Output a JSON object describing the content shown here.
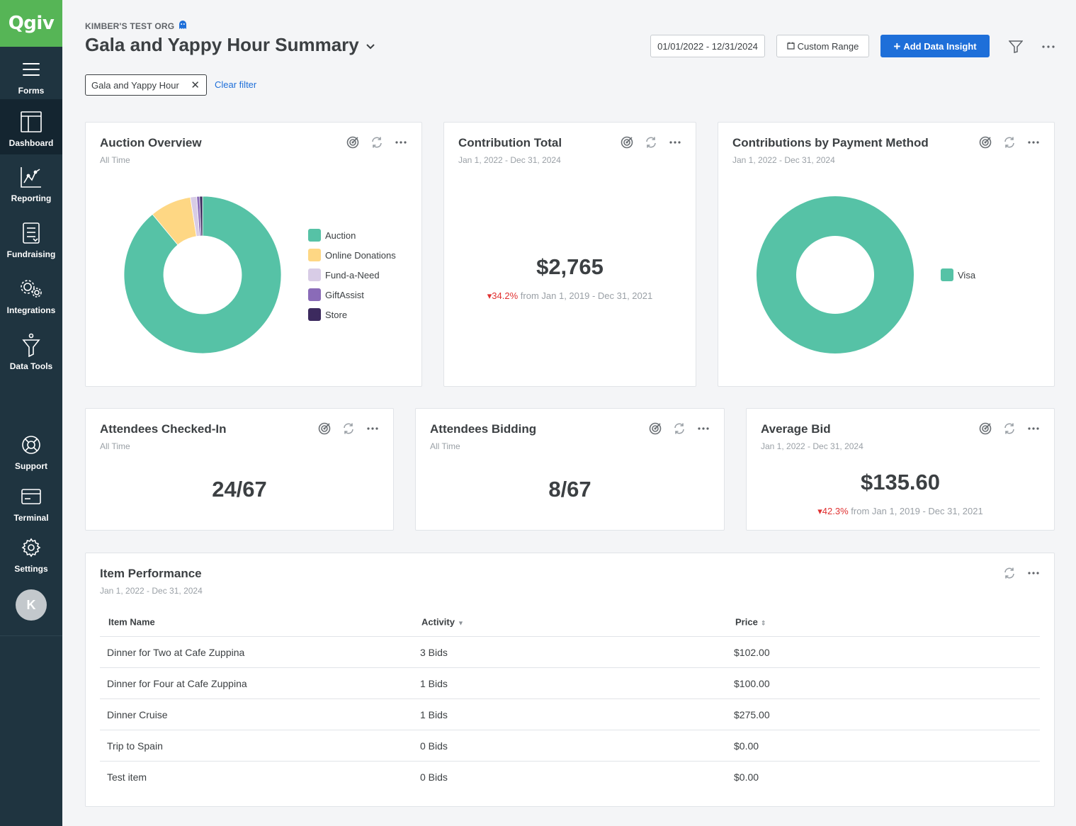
{
  "app": {
    "logo": "Qgiv"
  },
  "sidebar": {
    "items": [
      {
        "label": "Forms",
        "icon": "hamburger-icon"
      },
      {
        "label": "Dashboard",
        "icon": "dashboard-icon"
      },
      {
        "label": "Reporting",
        "icon": "chart-line-icon"
      },
      {
        "label": "Fundraising",
        "icon": "document-list-icon"
      },
      {
        "label": "Integrations",
        "icon": "gears-icon"
      },
      {
        "label": "Data Tools",
        "icon": "funnel-icon"
      },
      {
        "label": "Support",
        "icon": "lifebuoy-icon"
      },
      {
        "label": "Terminal",
        "icon": "card-terminal-icon"
      },
      {
        "label": "Settings",
        "icon": "gear-icon"
      }
    ],
    "active": "Dashboard",
    "avatar_initial": "K"
  },
  "header": {
    "org": "KIMBER'S TEST ORG",
    "title": "Gala and Yappy Hour Summary",
    "date_range": "01/01/2022 - 12/31/2024",
    "custom_range": "Custom Range",
    "add_insight": "Add Data Insight"
  },
  "filters": {
    "chip": "Gala and Yappy Hour",
    "clear": "Clear filter"
  },
  "colors": {
    "teal": "#56c2a6",
    "yellow": "#fed784",
    "lavender": "#d8cce6",
    "purple": "#8a6bb8",
    "dark_purple": "#3c2a5e",
    "primary": "#1e6fd9",
    "negative": "#e03131"
  },
  "cards": {
    "auction": {
      "title": "Auction Overview",
      "subtitle": "All Time"
    },
    "contribution": {
      "title": "Contribution Total",
      "subtitle": "Jan 1, 2022 - Dec 31, 2024",
      "value": "$2,765",
      "delta": "34.2%",
      "delta_text": "from Jan 1, 2019 - Dec 31, 2021"
    },
    "payment": {
      "title": "Contributions by Payment Method",
      "subtitle": "Jan 1, 2022 - Dec 31, 2024"
    },
    "checked_in": {
      "title": "Attendees Checked-In",
      "subtitle": "All Time",
      "value": "24/67"
    },
    "bidding": {
      "title": "Attendees Bidding",
      "subtitle": "All Time",
      "value": "8/67"
    },
    "avg_bid": {
      "title": "Average Bid",
      "subtitle": "Jan 1, 2022 - Dec 31, 2024",
      "value": "$135.60",
      "delta": "42.3%",
      "delta_text": "from Jan 1, 2019 - Dec 31, 2021"
    },
    "items": {
      "title": "Item Performance",
      "subtitle": "Jan 1, 2022 - Dec 31, 2024",
      "columns": [
        "Item Name",
        "Activity",
        "Price"
      ],
      "rows": [
        [
          "Dinner for Two at Cafe Zuppina",
          "3 Bids",
          "$102.00"
        ],
        [
          "Dinner for Four at Cafe Zuppina",
          "1 Bids",
          "$100.00"
        ],
        [
          "Dinner Cruise",
          "1 Bids",
          "$275.00"
        ],
        [
          "Trip to Spain",
          "0 Bids",
          "$0.00"
        ],
        [
          "Test item",
          "0 Bids",
          "$0.00"
        ]
      ]
    }
  },
  "chart_data": [
    {
      "type": "pie",
      "title": "Auction Overview",
      "categories": [
        "Auction",
        "Online Donations",
        "Fund-a-Need",
        "GiftAssist",
        "Store"
      ],
      "values": [
        89.0,
        8.5,
        1.3,
        0.6,
        0.6
      ],
      "colors": [
        "#56c2a6",
        "#fed784",
        "#d8cce6",
        "#8a6bb8",
        "#3c2a5e"
      ],
      "legend": "right"
    },
    {
      "type": "pie",
      "title": "Contributions by Payment Method",
      "categories": [
        "Visa"
      ],
      "values": [
        100
      ],
      "colors": [
        "#56c2a6"
      ],
      "legend": "right"
    }
  ]
}
